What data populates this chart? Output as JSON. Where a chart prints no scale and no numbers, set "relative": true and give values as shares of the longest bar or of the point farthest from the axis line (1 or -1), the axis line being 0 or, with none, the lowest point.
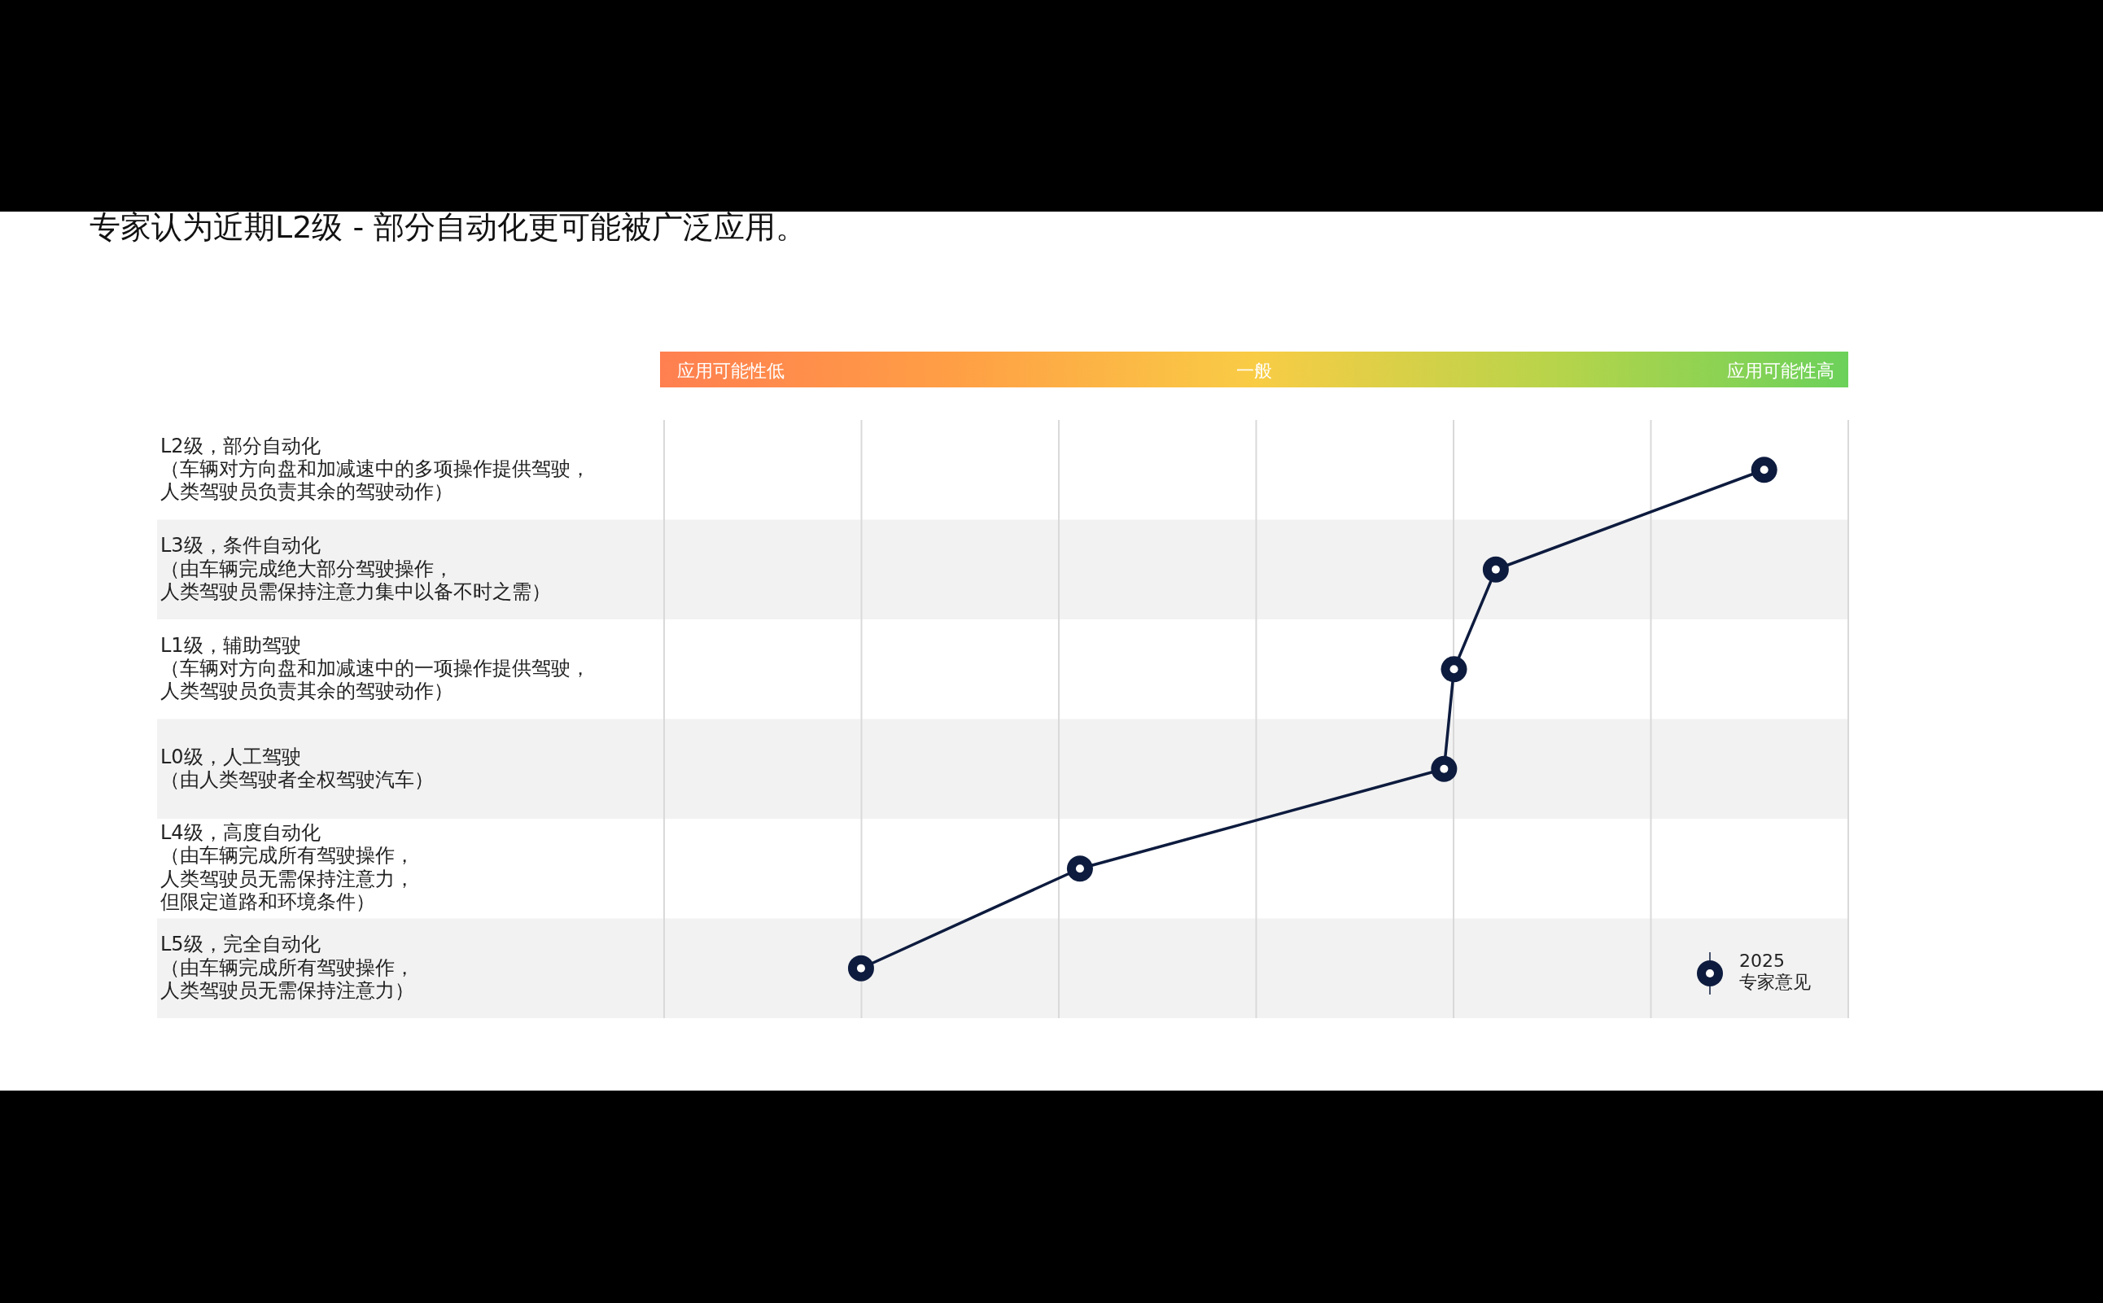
{
  "chart_data": {
    "type": "line",
    "title": "专家认为近期L2级 - 部分自动化更可能被广泛应用。",
    "orientation": "horizontal",
    "relative": true,
    "marker": "circle",
    "legend": "bottom right",
    "grid": "x",
    "annotations": [
      "应用可能性低",
      "一般",
      "应用可能性高"
    ],
    "categories": [
      "L2级，部分自动化（车辆对方向盘和加减速中的多项操作提供驾驶，人类驾驶员负责其余的驾驶动作）",
      "L3级，条件自动化（由车辆完成绝大部分驾驶操作，人类驾驶员需保持注意力集中以备不时之需）",
      "L1级，辅助驾驶（车辆对方向盘和加减速中的一项操作提供驾驶，人类驾驶员负责其余的驾驶动作）",
      "L0级，人工驾驶（由人类驾驶者全权驾驶汽车）",
      "L4级，高度自动化（由车辆完成所有驾驶操作，人类驾驶员无需保持注意力，但限定道路和环境条件）",
      "L5级，完全自动化（由车辆完成所有驾驶操作，人类驾驶员无需保持注意力）"
    ],
    "series": [
      {
        "name": "2025\n专家意见",
        "color": "#0d1b3e",
        "values": [
          1,
          0.756,
          0.718,
          0.709,
          0.378,
          0.179
        ]
      }
    ]
  }
}
